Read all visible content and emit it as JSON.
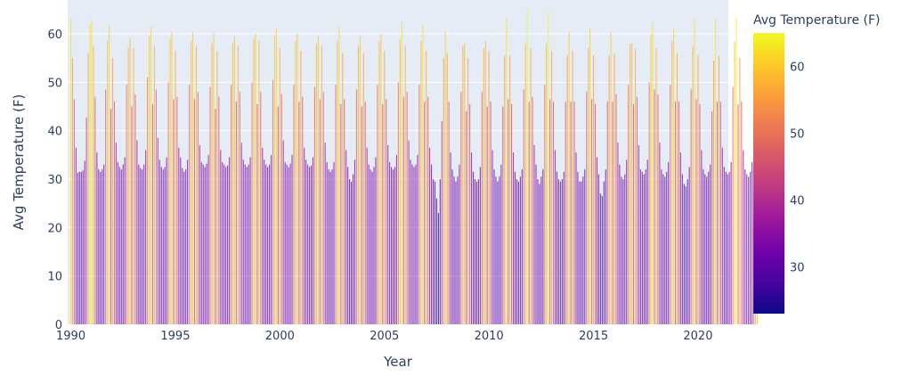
{
  "chart_data": {
    "type": "bar",
    "xlabel": "Year",
    "ylabel": "Avg Temperature (F)",
    "x_range": [
      1989.85,
      2021.45
    ],
    "ylim": [
      0,
      67
    ],
    "x_ticks": [
      1990,
      1995,
      2000,
      2005,
      2010,
      2015,
      2020
    ],
    "y_ticks": [
      0,
      10,
      20,
      30,
      40,
      50,
      60
    ],
    "grid": true,
    "colorbar": {
      "title": "Avg Temperature (F)",
      "range": [
        23,
        65
      ],
      "ticks": [
        30,
        40,
        50,
        60
      ],
      "colorscale": [
        "#0d0887",
        "#46039f",
        "#7201a8",
        "#9c179e",
        "#bd3786",
        "#d8576b",
        "#ed7953",
        "#fb9f3a",
        "#fdca26",
        "#f0f921"
      ]
    },
    "series": [
      {
        "x_start": "1990-01",
        "frequency": "monthly",
        "values": [
          63.0,
          55.0,
          46.5,
          36.5,
          31.3,
          31.5,
          31.5,
          31.8,
          33.8,
          42.7,
          56.0,
          62.0,
          62.8,
          57.5,
          47.0,
          35.5,
          32.0,
          31.5,
          32.0,
          33.0,
          48.5,
          58.5,
          61.8,
          44.5,
          55.0,
          46.0,
          37.5,
          33.5,
          32.5,
          32.0,
          33.0,
          34.5,
          49.5,
          57.0,
          59.0,
          45.0,
          57.0,
          47.5,
          38.0,
          33.0,
          32.3,
          32.0,
          33.0,
          36.0,
          51.0,
          59.5,
          61.5,
          45.5,
          57.5,
          48.5,
          38.5,
          34.0,
          32.5,
          32.0,
          32.5,
          34.5,
          50.0,
          59.0,
          60.5,
          46.5,
          56.5,
          47.0,
          36.5,
          34.5,
          32.3,
          31.5,
          32.0,
          34.0,
          49.5,
          58.5,
          60.2,
          46.5,
          57.5,
          48.0,
          37.0,
          33.5,
          33.0,
          32.5,
          33.2,
          35.0,
          49.0,
          58.0,
          60.0,
          44.5,
          56.5,
          47.0,
          36.0,
          33.5,
          33.0,
          32.5,
          32.8,
          34.5,
          49.5,
          58.0,
          59.5,
          46.0,
          57.5,
          48.0,
          37.5,
          34.0,
          33.0,
          32.5,
          33.0,
          34.5,
          50.0,
          59.0,
          60.0,
          45.5,
          58.5,
          48.0,
          36.5,
          34.0,
          33.0,
          32.5,
          33.0,
          35.0,
          50.5,
          59.5,
          61.0,
          45.0,
          57.0,
          47.5,
          38.0,
          33.5,
          33.0,
          32.5,
          33.2,
          35.0,
          49.5,
          58.5,
          60.0,
          46.0,
          56.5,
          47.0,
          36.5,
          34.0,
          33.0,
          32.5,
          32.8,
          34.5,
          49.0,
          58.0,
          59.5,
          46.5,
          57.5,
          48.0,
          37.5,
          33.5,
          32.0,
          31.5,
          32.0,
          33.5,
          49.5,
          58.5,
          61.5,
          45.5,
          56.0,
          46.5,
          36.0,
          32.5,
          30.0,
          29.5,
          31.0,
          34.0,
          48.5,
          57.5,
          59.5,
          45.0,
          56.0,
          46.0,
          36.5,
          33.0,
          32.0,
          31.5,
          32.5,
          34.5,
          49.5,
          58.5,
          60.0,
          45.5,
          56.5,
          46.5,
          37.0,
          33.5,
          32.5,
          32.0,
          32.5,
          35.0,
          50.0,
          59.0,
          62.5,
          47.0,
          57.5,
          48.0,
          38.0,
          34.0,
          33.0,
          32.5,
          33.0,
          35.0,
          49.5,
          58.5,
          62.0,
          46.0,
          56.5,
          47.0,
          36.5,
          33.0,
          30.0,
          29.5,
          26.0,
          23.0,
          30.0,
          42.0,
          55.0,
          60.5,
          56.0,
          46.0,
          35.5,
          32.0,
          30.5,
          29.5,
          30.5,
          33.0,
          48.0,
          57.5,
          58.0,
          44.0,
          55.0,
          45.5,
          35.5,
          31.5,
          30.0,
          29.5,
          30.0,
          32.5,
          48.0,
          57.0,
          58.5,
          45.0,
          56.5,
          46.0,
          36.0,
          32.0,
          30.5,
          29.5,
          30.5,
          33.0,
          45.0,
          55.5,
          63.0,
          46.5,
          55.5,
          45.5,
          35.5,
          31.5,
          30.0,
          29.5,
          30.5,
          32.0,
          48.5,
          58.0,
          65.0,
          46.0,
          57.0,
          47.0,
          37.0,
          33.0,
          30.0,
          29.0,
          30.5,
          32.0,
          49.5,
          58.0,
          64.5,
          46.5,
          56.5,
          46.0,
          36.0,
          31.5,
          30.0,
          29.5,
          30.0,
          31.5,
          46.0,
          55.5,
          60.5,
          46.0,
          56.5,
          46.0,
          35.5,
          31.5,
          29.5,
          29.5,
          30.5,
          32.0,
          48.0,
          57.0,
          61.0,
          46.5,
          55.5,
          45.5,
          34.5,
          31.0,
          27.0,
          26.5,
          29.5,
          32.0,
          46.0,
          55.5,
          60.5,
          46.0,
          56.0,
          47.5,
          37.5,
          33.0,
          30.5,
          30.0,
          31.0,
          34.0,
          49.5,
          58.0,
          58.0,
          45.5,
          57.0,
          47.0,
          37.0,
          32.0,
          31.5,
          31.0,
          32.0,
          34.0,
          50.0,
          60.0,
          62.5,
          48.5,
          57.0,
          47.5,
          37.5,
          32.0,
          31.0,
          30.5,
          31.5,
          33.5,
          49.5,
          58.5,
          61.0,
          46.0,
          56.0,
          46.0,
          35.5,
          31.0,
          29.0,
          28.5,
          30.0,
          32.5,
          48.5,
          57.5,
          63.0,
          46.5,
          55.5,
          45.5,
          36.0,
          32.0,
          31.0,
          30.5,
          31.5,
          33.0,
          44.0,
          54.5,
          63.0,
          46.0,
          55.5,
          46.0,
          36.5,
          32.5,
          31.5,
          31.0,
          31.5,
          33.5,
          49.0,
          58.5,
          63.5,
          45.5,
          55.0,
          46.0,
          36.0,
          32.0,
          31.0,
          30.5,
          31.5,
          33.5,
          48.0,
          57.0,
          60.0
        ]
      }
    ]
  }
}
